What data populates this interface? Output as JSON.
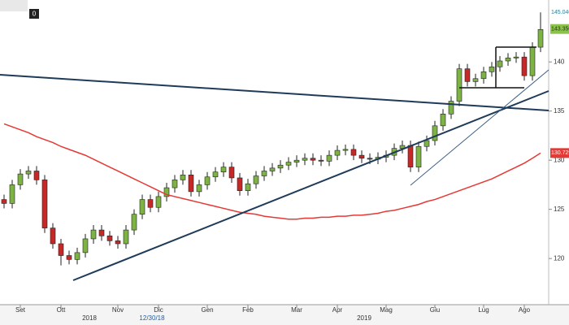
{
  "chart_data": {
    "type": "candlestick",
    "categories": [
      null,
      null,
      "Set",
      null,
      null,
      null,
      null,
      "Ott",
      null,
      null,
      null,
      null,
      null,
      null,
      "Nov",
      null,
      null,
      null,
      null,
      "Dic",
      null,
      null,
      null,
      null,
      null,
      "Gen",
      null,
      null,
      null,
      null,
      "Feb",
      null,
      null,
      null,
      null,
      null,
      "Mar",
      null,
      null,
      null,
      null,
      "Apr",
      null,
      null,
      null,
      null,
      null,
      "Mag",
      null,
      null,
      null,
      null,
      null,
      "Giu",
      null,
      null,
      null,
      null,
      null,
      "Lug",
      null,
      null,
      null,
      null,
      "Ago",
      null,
      null
    ],
    "open": [
      126.0,
      125.6,
      127.5,
      128.6,
      128.9,
      128.0,
      123.1,
      121.5,
      120.3,
      119.9,
      120.6,
      122.0,
      122.9,
      122.3,
      121.8,
      121.5,
      122.9,
      124.5,
      126.0,
      125.2,
      126.3,
      127.2,
      128.0,
      128.5,
      126.8,
      127.5,
      128.3,
      128.8,
      129.3,
      128.2,
      126.9,
      127.6,
      128.4,
      128.9,
      129.2,
      129.5,
      129.8,
      130.0,
      130.2,
      130.0,
      129.9,
      130.5,
      131.0,
      131.1,
      130.5,
      130.2,
      130.1,
      130.3,
      130.5,
      131.2,
      131.5,
      129.3,
      131.4,
      132.0,
      133.5,
      134.7,
      136.0,
      139.3,
      138.0,
      138.3,
      139.0,
      139.5,
      140.1,
      140.4,
      140.5,
      138.6,
      141.5
    ],
    "high": [
      126.5,
      128.0,
      129.1,
      129.4,
      129.4,
      128.5,
      123.6,
      122.0,
      120.8,
      121.1,
      122.5,
      123.4,
      123.4,
      122.8,
      122.3,
      123.4,
      125.0,
      126.5,
      126.5,
      126.8,
      127.7,
      128.5,
      129.0,
      129.0,
      128.0,
      128.8,
      129.3,
      129.8,
      129.8,
      128.7,
      128.1,
      128.9,
      129.4,
      129.7,
      130.0,
      130.3,
      130.5,
      130.7,
      130.7,
      130.5,
      131.0,
      131.5,
      131.6,
      131.6,
      131.0,
      130.7,
      130.8,
      131.0,
      131.7,
      132.0,
      132.0,
      131.9,
      132.5,
      134.0,
      135.2,
      136.5,
      139.8,
      139.8,
      138.8,
      139.5,
      140.0,
      140.6,
      140.9,
      141.0,
      141.0,
      142.0,
      145.04
    ],
    "low": [
      125.1,
      125.1,
      127.0,
      128.1,
      127.5,
      122.6,
      121.0,
      119.3,
      119.4,
      119.4,
      120.1,
      121.5,
      121.8,
      121.3,
      121.0,
      121.0,
      122.4,
      124.0,
      124.7,
      124.7,
      125.8,
      126.7,
      127.5,
      126.3,
      126.3,
      127.0,
      127.8,
      128.3,
      127.7,
      126.4,
      126.4,
      127.1,
      127.9,
      128.4,
      128.7,
      129.0,
      129.3,
      129.5,
      129.5,
      129.4,
      129.4,
      130.0,
      130.5,
      130.0,
      129.7,
      129.6,
      129.6,
      129.8,
      130.0,
      130.7,
      128.8,
      128.8,
      130.9,
      131.5,
      133.0,
      134.2,
      135.5,
      137.5,
      137.5,
      137.8,
      138.5,
      139.0,
      139.6,
      139.9,
      138.1,
      138.1,
      141.0
    ],
    "close": [
      125.6,
      127.5,
      128.6,
      128.9,
      128.0,
      123.1,
      121.5,
      120.3,
      119.9,
      120.6,
      122.0,
      122.9,
      122.3,
      121.8,
      121.5,
      122.9,
      124.5,
      126.0,
      125.2,
      126.3,
      127.2,
      128.0,
      128.5,
      126.8,
      127.5,
      128.3,
      128.8,
      129.3,
      128.2,
      126.9,
      127.6,
      128.4,
      128.9,
      129.2,
      129.5,
      129.8,
      130.0,
      130.2,
      130.0,
      129.9,
      130.5,
      131.0,
      131.1,
      130.5,
      130.2,
      130.1,
      130.3,
      130.5,
      131.2,
      131.5,
      129.3,
      131.4,
      132.0,
      133.5,
      134.7,
      136.0,
      139.3,
      138.0,
      138.3,
      139.0,
      139.5,
      140.1,
      140.4,
      140.5,
      138.6,
      141.5,
      143.3
    ],
    "up_color": "#7cb342",
    "down_color": "#c62828",
    "ma": {
      "color": "#e53935",
      "values": [
        133.7,
        133.4,
        133.1,
        132.8,
        132.4,
        132.1,
        131.8,
        131.4,
        131.1,
        130.8,
        130.5,
        130.1,
        129.7,
        129.3,
        128.9,
        128.5,
        128.1,
        127.7,
        127.3,
        126.9,
        126.5,
        126.3,
        126.1,
        125.9,
        125.7,
        125.5,
        125.3,
        125.1,
        124.9,
        124.7,
        124.6,
        124.5,
        124.3,
        124.2,
        124.1,
        124.0,
        124.0,
        124.1,
        124.1,
        124.2,
        124.2,
        124.3,
        124.3,
        124.4,
        124.4,
        124.5,
        124.6,
        124.8,
        124.9,
        125.1,
        125.3,
        125.5,
        125.8,
        126.0,
        126.3,
        126.6,
        126.9,
        127.2,
        127.5,
        127.8,
        128.1,
        128.5,
        128.9,
        129.3,
        129.7,
        130.2,
        130.73
      ]
    },
    "ylim": [
      115.3,
      146.3
    ],
    "yticks": [
      120,
      125,
      130,
      135,
      140
    ],
    "price_labels": [
      {
        "value": 145.04,
        "label": "145.0400",
        "color": "#ffffff",
        "text_color": "#2e7d9a"
      },
      {
        "value": 143.35,
        "label": "143.3500",
        "color": "#8bc34a",
        "text_color": "#1b3a00"
      },
      {
        "value": 130.7299,
        "label": "130.7299",
        "color": "#e53935",
        "text_color": "#ffffff"
      }
    ],
    "year_labels": [
      "2018",
      "12/30/18",
      "2019"
    ],
    "toolbar_label": "0"
  }
}
